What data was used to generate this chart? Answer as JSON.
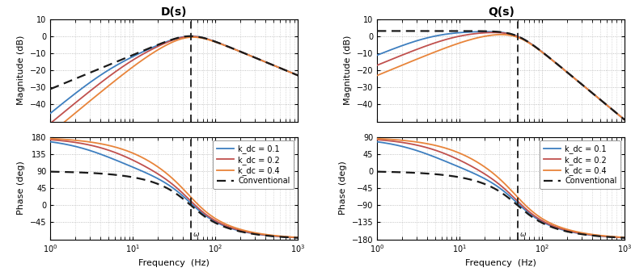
{
  "title_D": "D(s)",
  "title_Q": "Q(s)",
  "xlabel": "Frequency  (Hz)",
  "ylabel_mag": "Magnitude (dB)",
  "ylabel_phase": "Phase (deg)",
  "f0": 50.0,
  "k_conv": 1.4142135623730951,
  "kdc_values": [
    0.1,
    0.2,
    0.4
  ],
  "colors": [
    "#3d7ebf",
    "#c0504d",
    "#e8843a"
  ],
  "conv_color": "#1a1a1a",
  "freq_range": [
    1,
    1000
  ],
  "mag_ylim": [
    -50,
    10
  ],
  "mag_yticks": [
    -40,
    -30,
    -20,
    -10,
    0,
    10
  ],
  "phase_ylim_D": [
    -90,
    180
  ],
  "phase_yticks_D": [
    -45,
    0,
    45,
    90,
    135,
    180
  ],
  "phase_ylim_Q": [
    -180,
    90
  ],
  "phase_yticks_Q": [
    -180,
    -135,
    -90,
    -45,
    0,
    45,
    90
  ],
  "legend_labels": [
    "k_dc = 0.1",
    "k_dc = 0.2",
    "k_dc = 0.4",
    "Conventional"
  ],
  "background_color": "#ffffff",
  "grid_color": "#b0b0b0",
  "lw": 1.3,
  "conv_lw": 1.6,
  "figsize": [
    7.8,
    3.37
  ],
  "dpi": 100
}
